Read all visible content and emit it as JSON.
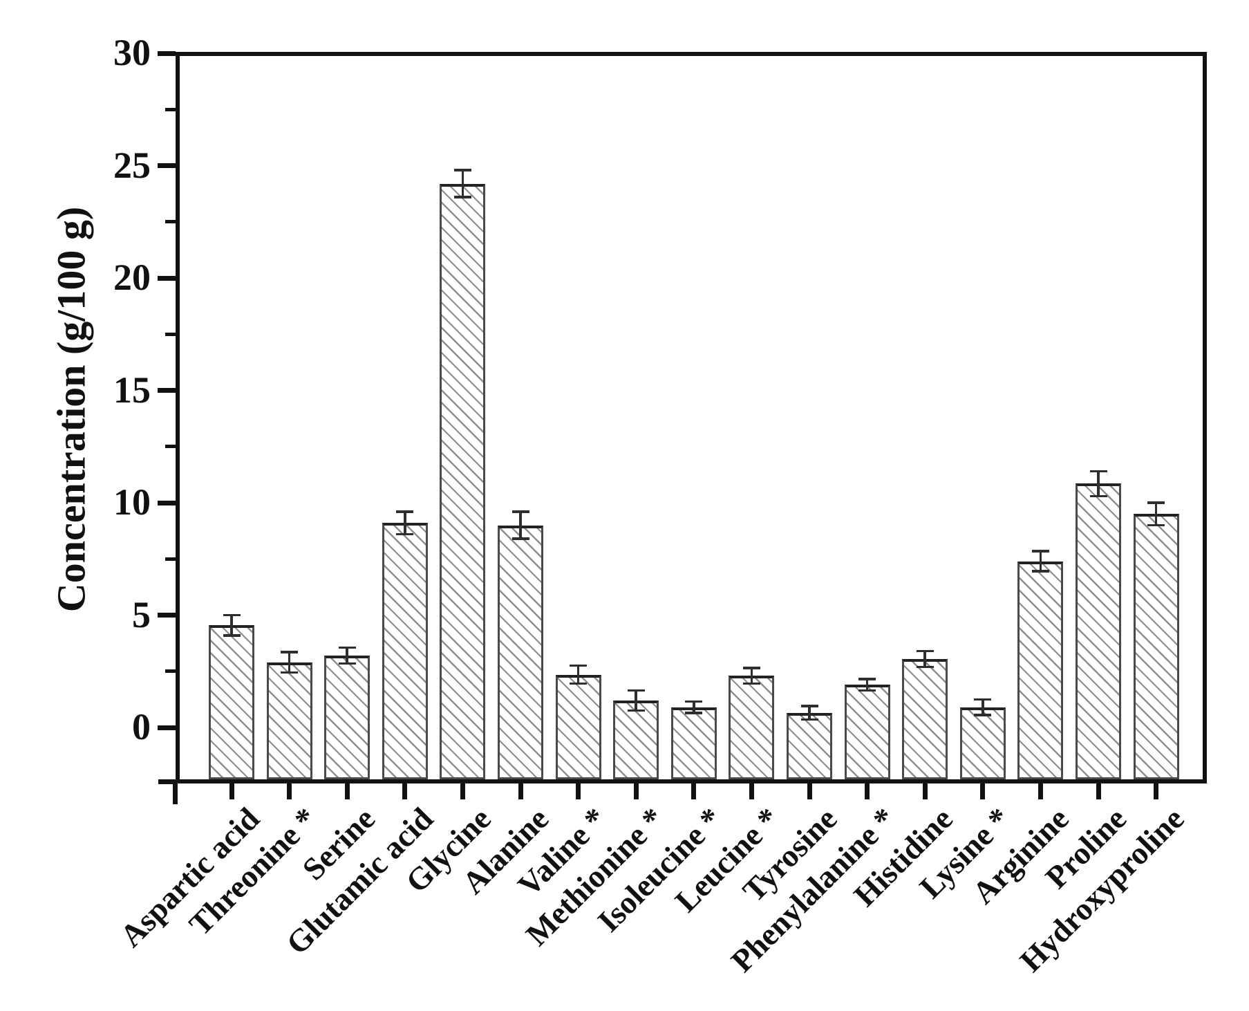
{
  "figure": {
    "kind": "scientific bar chart, monochrome with hatched bars",
    "background": "#ffffff",
    "ink_color": "#111111",
    "hatch_color": "#8e8e8e"
  },
  "chart_data": {
    "type": "bar",
    "title": "",
    "xlabel": "",
    "ylabel": "Concentration (g/100 g)",
    "ylim": [
      -2.5,
      30
    ],
    "yticks_major": [
      0,
      5,
      10,
      15,
      20,
      25,
      30
    ],
    "yticks_minor": [
      2.5,
      7.5,
      12.5,
      17.5,
      22.5,
      27.5
    ],
    "grid": false,
    "legend": "none",
    "bar_fill": "white with gray diagonal hatch (top-left to bottom-right)",
    "error_bars": "symmetric with end caps",
    "categories": [
      "Aspartic acid",
      "Threonine *",
      "Serine",
      "Glutamic acid",
      "Glycine",
      "Alanine",
      "Valine *",
      "Methionine *",
      "Isoleucine *",
      "Leucine *",
      "Tyrosine",
      "Phenylalanine *",
      "Histidine",
      "Lysine *",
      "Arginine",
      "Proline",
      "Hydroxyproline"
    ],
    "values": [
      4.55,
      2.9,
      3.2,
      9.1,
      24.2,
      9.0,
      2.35,
      1.2,
      0.9,
      2.3,
      0.65,
      1.9,
      3.05,
      0.9,
      7.4,
      10.85,
      9.5
    ],
    "errors": [
      0.45,
      0.45,
      0.35,
      0.5,
      0.6,
      0.6,
      0.4,
      0.45,
      0.25,
      0.35,
      0.3,
      0.25,
      0.35,
      0.35,
      0.45,
      0.55,
      0.5
    ]
  }
}
